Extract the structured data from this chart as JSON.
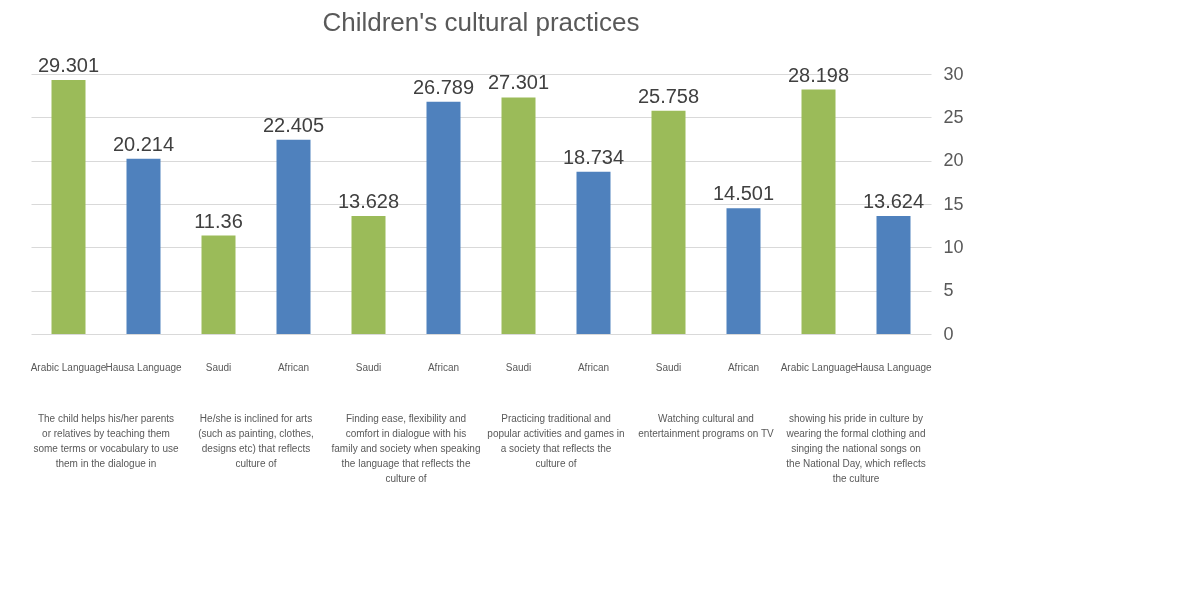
{
  "chart_data": {
    "type": "bar",
    "title": "Children's cultural practices",
    "categories": [
      "Arabic Language",
      "Hausa Language",
      "Saudi",
      "African",
      "Saudi",
      "African",
      "Saudi",
      "African",
      "Saudi",
      "African",
      "Arabic Language",
      "Hausa Language"
    ],
    "values": [
      29.301,
      20.214,
      11.36,
      22.405,
      13.628,
      26.789,
      27.301,
      18.734,
      25.758,
      14.501,
      28.198,
      13.624
    ],
    "colors": [
      "#9bbb59",
      "#4f81bd",
      "#9bbb59",
      "#4f81bd",
      "#9bbb59",
      "#4f81bd",
      "#9bbb59",
      "#4f81bd",
      "#9bbb59",
      "#4f81bd",
      "#9bbb59",
      "#4f81bd"
    ],
    "ylim": [
      0,
      30
    ],
    "yticks": [
      0,
      5,
      10,
      15,
      20,
      25,
      30
    ],
    "grid": "y",
    "data_labels": true,
    "annotations": [
      "The child helps his/her parents or relatives by teaching them some terms or vocabulary to use them in the dialogue in",
      "He/she is inclined for arts (such as painting, clothes, designs etc) that reflects culture of",
      "Finding ease, flexibility and comfort in dialogue with his family and society when speaking the language that reflects the culture of",
      "Practicing traditional and popular activities and games in a society that reflects the culture of",
      "Watching cultural and entertainment programs on TV",
      "showing his pride in culture by wearing the formal clothing and singing the national songs on the National Day, which reflects the culture"
    ]
  }
}
